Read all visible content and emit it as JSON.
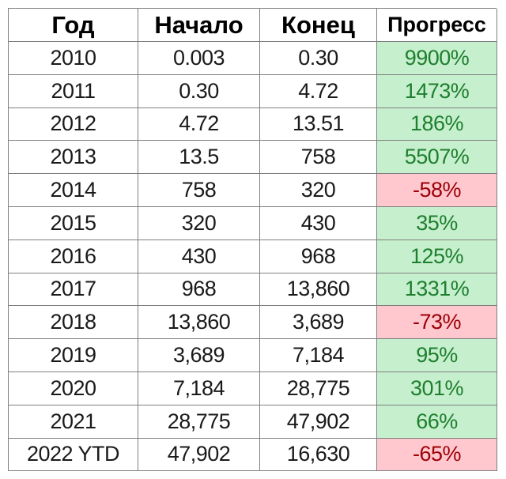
{
  "headers": {
    "year": "Год",
    "start": "Начало",
    "end": "Конец",
    "progress": "Прогресс"
  },
  "colors": {
    "positive_fill": "#c6efce",
    "positive_text": "#1e7f2e",
    "negative_fill": "#ffc7ce",
    "negative_text": "#9c0006",
    "border": "#7f7f7f"
  },
  "rows": [
    {
      "year": "2010",
      "start": "0.003",
      "end": "0.30",
      "progress": "9900%",
      "status": "positive"
    },
    {
      "year": "2011",
      "start": "0.30",
      "end": "4.72",
      "progress": "1473%",
      "status": "positive"
    },
    {
      "year": "2012",
      "start": "4.72",
      "end": "13.51",
      "progress": "186%",
      "status": "positive"
    },
    {
      "year": "2013",
      "start": "13.5",
      "end": "758",
      "progress": "5507%",
      "status": "positive"
    },
    {
      "year": "2014",
      "start": "758",
      "end": "320",
      "progress": "-58%",
      "status": "negative"
    },
    {
      "year": "2015",
      "start": "320",
      "end": "430",
      "progress": "35%",
      "status": "positive"
    },
    {
      "year": "2016",
      "start": "430",
      "end": "968",
      "progress": "125%",
      "status": "positive"
    },
    {
      "year": "2017",
      "start": "968",
      "end": "13,860",
      "progress": "1331%",
      "status": "positive"
    },
    {
      "year": "2018",
      "start": "13,860",
      "end": "3,689",
      "progress": "-73%",
      "status": "negative"
    },
    {
      "year": "2019",
      "start": "3,689",
      "end": "7,184",
      "progress": "95%",
      "status": "positive"
    },
    {
      "year": "2020",
      "start": "7,184",
      "end": "28,775",
      "progress": "301%",
      "status": "positive"
    },
    {
      "year": "2021",
      "start": "28,775",
      "end": "47,902",
      "progress": "66%",
      "status": "positive"
    },
    {
      "year": "2022 YTD",
      "start": "47,902",
      "end": "16,630",
      "progress": "-65%",
      "status": "negative"
    }
  ]
}
